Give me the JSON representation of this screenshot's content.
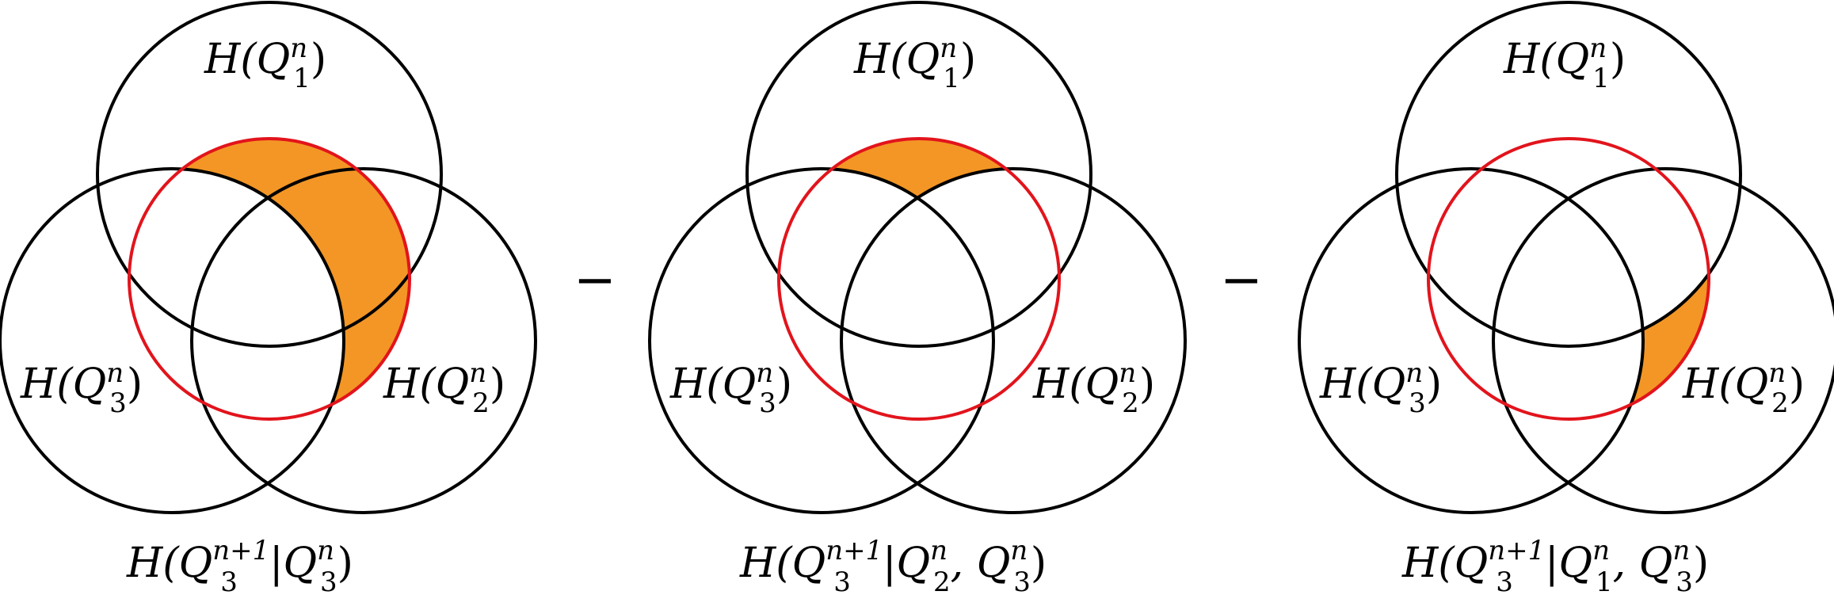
{
  "panels": [
    {
      "labels": {
        "top": {
          "base": "H(Q",
          "sup": "n",
          "sub": "1",
          "close": ")"
        },
        "left": {
          "base": "H(Q",
          "sup": "n",
          "sub": "3",
          "close": ")"
        },
        "right": {
          "base": "H(Q",
          "sup": "n",
          "sub": "2",
          "close": ")"
        }
      },
      "caption": {
        "pre": "H(Q",
        "sup": "n+1",
        "sub": "3",
        "mid": "|Q",
        "sup2": "n",
        "sub2": "3",
        "post": ")"
      }
    },
    {
      "labels": {
        "top": {
          "base": "H(Q",
          "sup": "n",
          "sub": "1",
          "close": ")"
        },
        "left": {
          "base": "H(Q",
          "sup": "n",
          "sub": "3",
          "close": ")"
        },
        "right": {
          "base": "H(Q",
          "sup": "n",
          "sub": "2",
          "close": ")"
        }
      },
      "caption": {
        "pre": "H(Q",
        "sup": "n+1",
        "sub": "3",
        "mid": "|Q",
        "sup2": "n",
        "sub2": "2",
        "mid2": ", Q",
        "sup3": "n",
        "sub3": "3",
        "post": ")"
      }
    },
    {
      "labels": {
        "top": {
          "base": "H(Q",
          "sup": "n",
          "sub": "1",
          "close": ")"
        },
        "left": {
          "base": "H(Q",
          "sup": "n",
          "sub": "3",
          "close": ")"
        },
        "right": {
          "base": "H(Q",
          "sup": "n",
          "sub": "2",
          "close": ")"
        }
      },
      "caption": {
        "pre": "H(Q",
        "sup": "n+1",
        "sub": "3",
        "mid": "|Q",
        "sup2": "n",
        "sub2": "1",
        "mid2": ", Q",
        "sup3": "n",
        "sub3": "3",
        "post": ")"
      }
    }
  ],
  "operators": [
    "−",
    "−"
  ],
  "colors": {
    "highlight": "#f39625",
    "red_circle": "#e2141c",
    "outline": "#000000"
  }
}
